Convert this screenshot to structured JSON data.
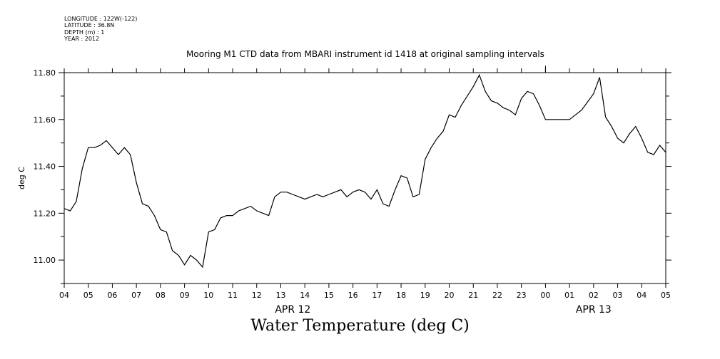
{
  "metadata": [
    "LONGITUDE : 122W(-122)",
    "LATITUDE : 36.8N",
    "DEPTH (m) : 1",
    "YEAR : 2012"
  ],
  "page_title": "Water Temperature (deg C)",
  "chart_data": {
    "type": "line",
    "title": "Mooring M1 CTD data from MBARI instrument id 1418 at original sampling intervals",
    "xlabel": "",
    "ylabel": "deg C",
    "ylim": [
      10.9,
      11.8
    ],
    "yticks": [
      11.0,
      11.2,
      11.4,
      11.6,
      11.8
    ],
    "ytick_labels": [
      "11.00",
      "11.20",
      "11.40",
      "11.60",
      "11.80"
    ],
    "xlim_hours": [
      4,
      29
    ],
    "xtick_labels": [
      "04",
      "05",
      "06",
      "07",
      "08",
      "09",
      "10",
      "11",
      "12",
      "13",
      "14",
      "15",
      "16",
      "17",
      "18",
      "19",
      "20",
      "21",
      "22",
      "23",
      "00",
      "01",
      "02",
      "03",
      "04",
      "05"
    ],
    "date_labels": [
      {
        "text": "APR 12",
        "hour": 13.5
      },
      {
        "text": "APR 13",
        "hour": 26.0
      }
    ],
    "grid": false,
    "series": [
      {
        "x": [
          4.0,
          4.25,
          4.5,
          4.75,
          5.0,
          5.25,
          5.5,
          5.75,
          6.0,
          6.25,
          6.5,
          6.75,
          7.0,
          7.25,
          7.5,
          7.75,
          8.0,
          8.25,
          8.5,
          8.75,
          9.0,
          9.25,
          9.5,
          9.75,
          10.0,
          10.25,
          10.5,
          10.75,
          11.0,
          11.25,
          11.5,
          11.75,
          12.0,
          12.25,
          12.5,
          12.75,
          13.0,
          13.25,
          13.5,
          13.75,
          14.0,
          14.25,
          14.5,
          14.75,
          15.0,
          15.25,
          15.5,
          15.75,
          16.0,
          16.25,
          16.5,
          16.75,
          17.0,
          17.25,
          17.5,
          17.75,
          18.0,
          18.25,
          18.5,
          18.75,
          19.0,
          19.25,
          19.5,
          19.75,
          20.0,
          20.25,
          20.5,
          20.75,
          21.0,
          21.25,
          21.5,
          21.75,
          22.0,
          22.25,
          22.5,
          22.75,
          23.0,
          23.25,
          23.5,
          23.75,
          24.0,
          25.0,
          25.5,
          26.0,
          26.25,
          26.5,
          26.75,
          27.0,
          27.25,
          27.5,
          27.75,
          28.0,
          28.25,
          28.5,
          28.75,
          29.0
        ],
        "values": [
          11.22,
          11.21,
          11.25,
          11.39,
          11.48,
          11.48,
          11.49,
          11.51,
          11.48,
          11.45,
          11.48,
          11.45,
          11.33,
          11.24,
          11.23,
          11.19,
          11.13,
          11.12,
          11.04,
          11.02,
          10.98,
          11.02,
          11.0,
          10.97,
          11.12,
          11.13,
          11.18,
          11.19,
          11.19,
          11.21,
          11.22,
          11.23,
          11.21,
          11.2,
          11.19,
          11.27,
          11.29,
          11.29,
          11.28,
          11.27,
          11.26,
          11.27,
          11.28,
          11.27,
          11.28,
          11.29,
          11.3,
          11.27,
          11.29,
          11.3,
          11.29,
          11.26,
          11.3,
          11.24,
          11.23,
          11.3,
          11.36,
          11.35,
          11.27,
          11.28,
          11.43,
          11.48,
          11.52,
          11.55,
          11.62,
          11.61,
          11.66,
          11.7,
          11.74,
          11.79,
          11.72,
          11.68,
          11.67,
          11.65,
          11.64,
          11.62,
          11.69,
          11.72,
          11.71,
          11.66,
          11.6,
          11.6,
          11.64,
          11.71,
          11.78,
          11.61,
          11.57,
          11.52,
          11.5,
          11.54,
          11.57,
          11.52,
          11.46,
          11.45,
          11.49,
          11.46
        ]
      }
    ]
  }
}
